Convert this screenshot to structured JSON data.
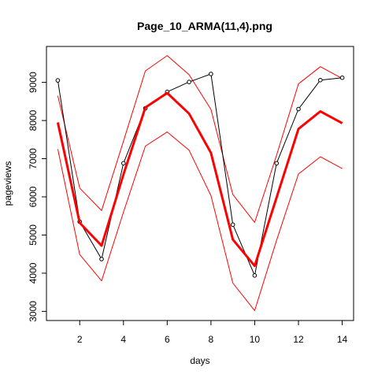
{
  "chart_data": {
    "type": "line",
    "title": "Page_10_ARMA(11,4).png",
    "xlabel": "days",
    "ylabel": "pageviews",
    "xlim": [
      0.48,
      14.52
    ],
    "ylim": [
      2760,
      9940
    ],
    "x_ticks": [
      2,
      4,
      6,
      8,
      10,
      12,
      14
    ],
    "y_ticks": [
      3000,
      4000,
      5000,
      6000,
      7000,
      8000,
      9000
    ],
    "grid": false,
    "legend": "none",
    "x": [
      1,
      2,
      3,
      4,
      5,
      6,
      7,
      8,
      9,
      10,
      11,
      12,
      13,
      14
    ],
    "series": [
      {
        "role": "observed",
        "color": "#000000",
        "style": "line-with-open-circles",
        "values": [
          9050,
          5350,
          4370,
          6880,
          8320,
          8750,
          9010,
          9220,
          5270,
          3940,
          6880,
          8300,
          9060,
          9120
        ]
      },
      {
        "role": "forecast",
        "color": "#ff0000",
        "style": "thick-line",
        "values": [
          7950,
          5320,
          4720,
          6590,
          8340,
          8720,
          8180,
          7150,
          4880,
          4190,
          5980,
          7780,
          8240,
          7930
        ]
      },
      {
        "role": "upper-bound",
        "color": "#ff0000",
        "style": "thin-line",
        "values": [
          8650,
          6230,
          5640,
          7460,
          9300,
          9700,
          9200,
          8290,
          6060,
          5330,
          7090,
          8960,
          9410,
          9100
        ]
      },
      {
        "role": "lower-bound",
        "color": "#ff0000",
        "style": "thin-line",
        "values": [
          7250,
          4490,
          3800,
          5600,
          7330,
          7700,
          7220,
          6030,
          3740,
          3020,
          4860,
          6600,
          7050,
          6740
        ]
      }
    ]
  }
}
